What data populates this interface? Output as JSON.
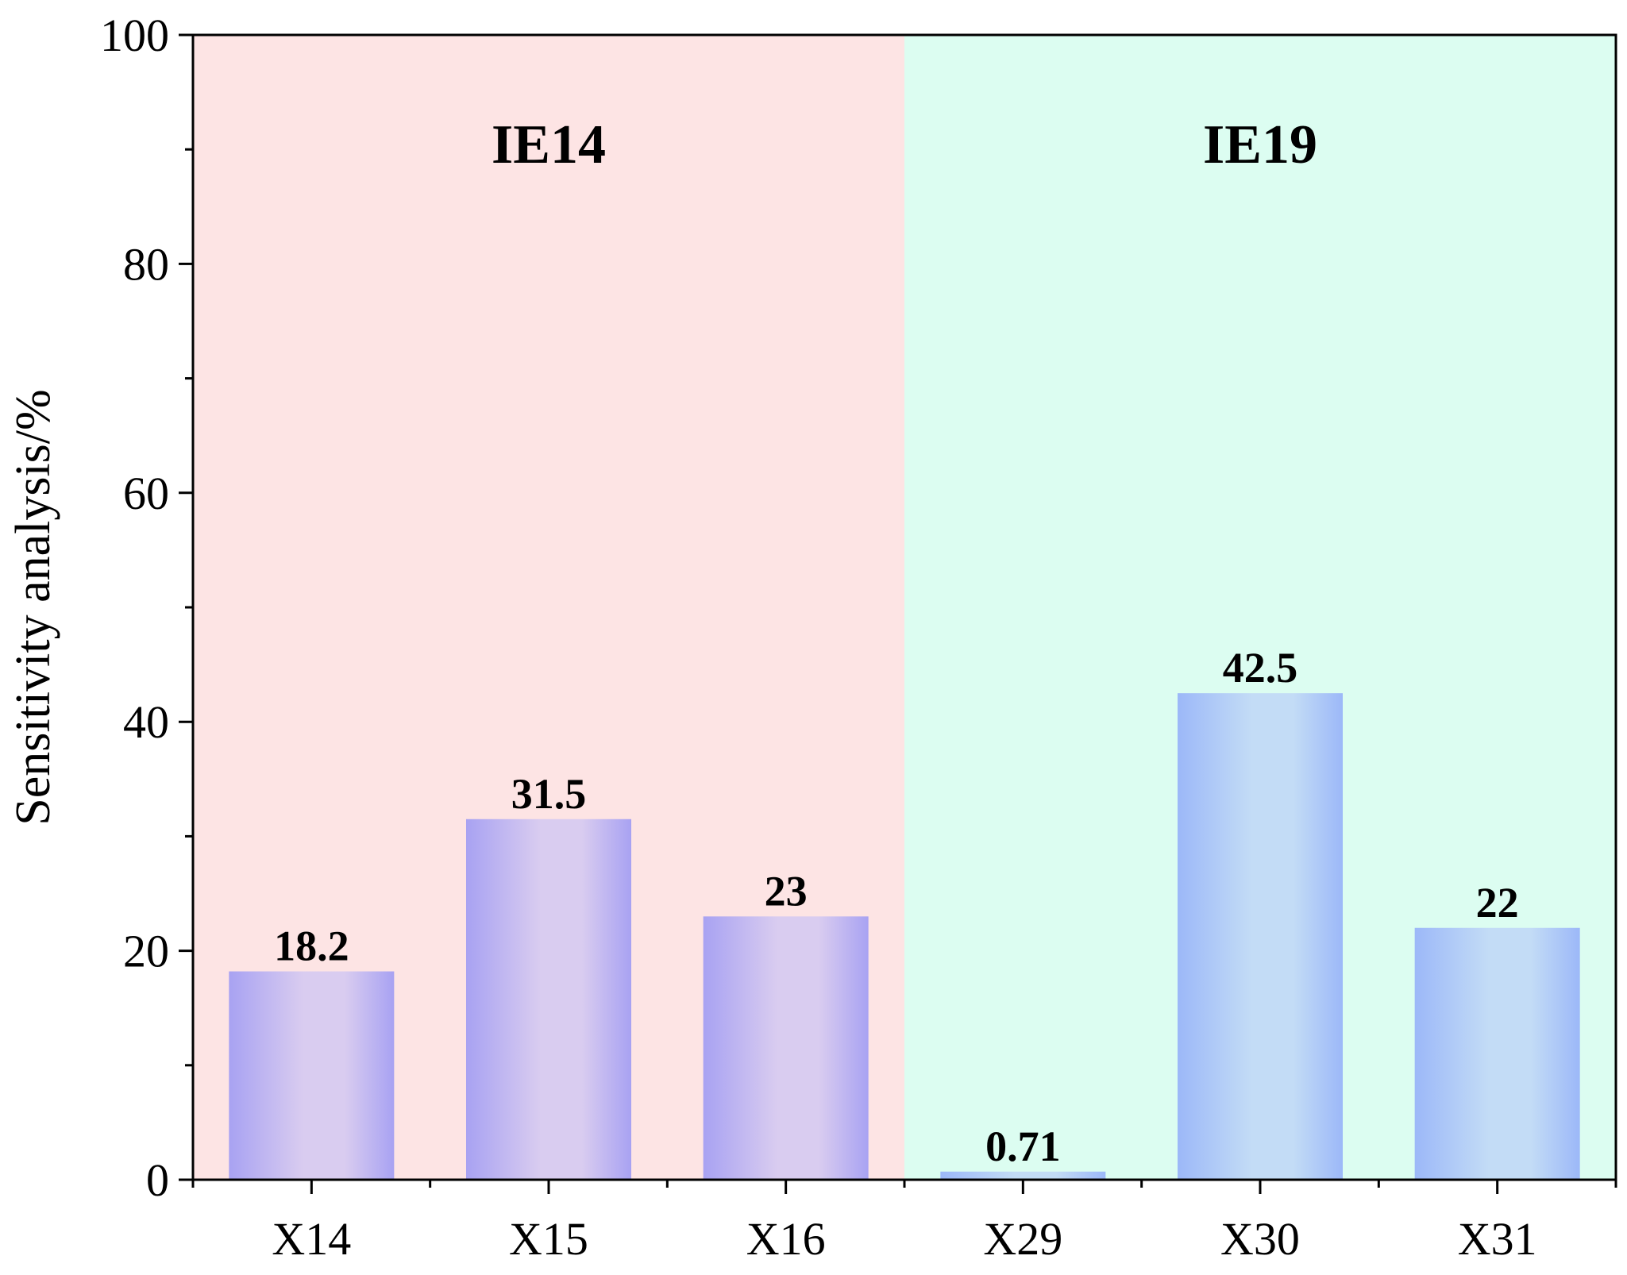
{
  "chart_data": {
    "type": "bar",
    "categories": [
      "X14",
      "X15",
      "X16",
      "X29",
      "X30",
      "X31"
    ],
    "values": [
      18.2,
      31.5,
      23,
      0.71,
      42.5,
      22
    ],
    "value_labels": [
      "18.2",
      "31.5",
      "23",
      "0.71",
      "42.5",
      "22"
    ],
    "title": "",
    "xlabel": "",
    "ylabel": "Sensitivity analysis/%",
    "ylim": [
      0,
      100
    ],
    "yticks": [
      0,
      20,
      40,
      60,
      80,
      100
    ],
    "ytick_labels": [
      "0",
      "20",
      "40",
      "60",
      "80",
      "100"
    ],
    "grid": false,
    "groups": [
      {
        "label": "IE14",
        "categories": [
          "X14",
          "X15",
          "X16"
        ],
        "background": "#fde4e4",
        "bar_edge": "#a8a2f2",
        "bar_center": "#d9ccf0"
      },
      {
        "label": "IE19",
        "categories": [
          "X29",
          "X30",
          "X31"
        ],
        "background": "#dcfdf1",
        "bar_edge": "#9cb8f8",
        "bar_center": "#c3dcf6"
      }
    ]
  }
}
